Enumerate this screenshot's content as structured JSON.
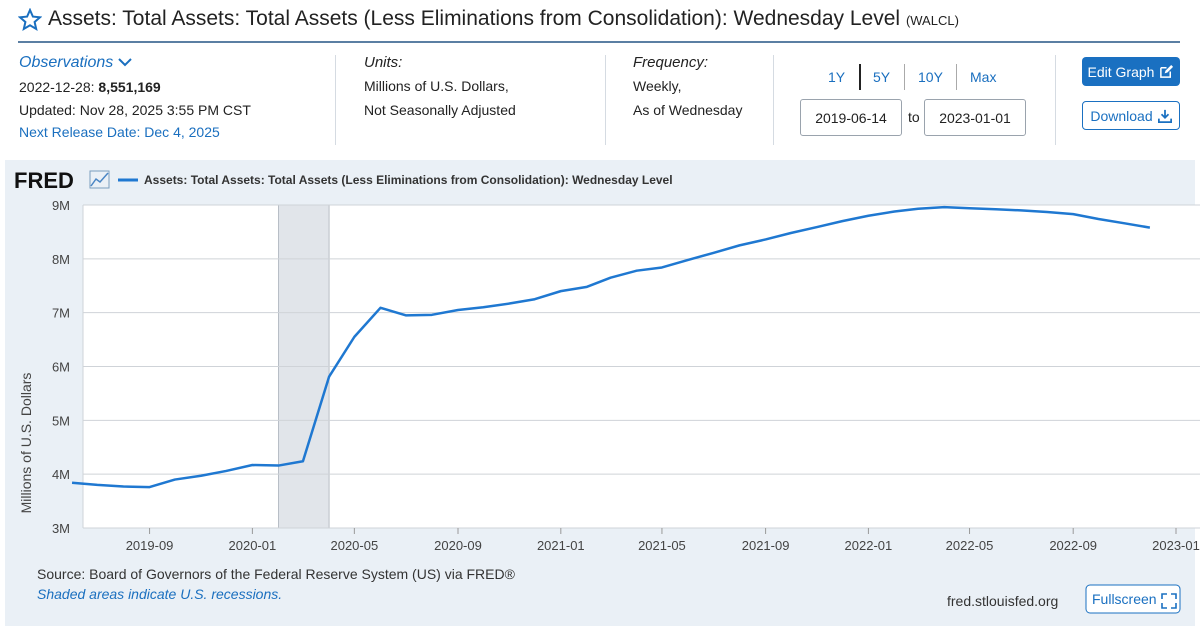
{
  "header": {
    "title": "Assets: Total Assets: Total Assets (Less Eliminations from Consolidation): Wednesday Level",
    "series_id": "(WALCL)"
  },
  "observations": {
    "label": "Observations",
    "date": "2022-12-28:",
    "value": "8,551,169",
    "updated": "Updated: Nov 28, 2025 3:55 PM CST",
    "next_release": "Next Release Date: Dec 4, 2025"
  },
  "units": {
    "label": "Units:",
    "lines": [
      "Millions of U.S. Dollars,",
      "Not Seasonally Adjusted"
    ]
  },
  "frequency": {
    "label": "Frequency:",
    "lines": [
      "Weekly,",
      "As of Wednesday"
    ]
  },
  "range_buttons": [
    "1Y",
    "5Y",
    "10Y",
    "Max"
  ],
  "date_separator": "to",
  "buttons": {
    "edit": "Edit Graph",
    "download": "Download",
    "fullscreen": "Fullscreen"
  },
  "chart_data": {
    "type": "line",
    "logo": "FRED",
    "ylabel": "Millions of U.S. Dollars",
    "x": [
      "2019-06",
      "2019-07",
      "2019-08",
      "2019-09",
      "2019-10",
      "2019-11",
      "2019-12",
      "2020-01",
      "2020-02",
      "2020-03",
      "2020-04",
      "2020-05",
      "2020-06",
      "2020-07",
      "2020-08",
      "2020-09",
      "2020-10",
      "2020-11",
      "2020-12",
      "2021-01",
      "2021-02",
      "2021-03",
      "2021-04",
      "2021-05",
      "2021-06",
      "2021-07",
      "2021-08",
      "2021-09",
      "2021-10",
      "2021-11",
      "2021-12",
      "2022-01",
      "2022-02",
      "2022-03",
      "2022-04",
      "2022-05",
      "2022-06",
      "2022-07",
      "2022-08",
      "2022-09",
      "2022-10",
      "2022-11",
      "2022-12"
    ],
    "series": [
      {
        "name": "Assets: Total Assets: Total Assets (Less Eliminations from Consolidation): Wednesday Level",
        "color": "#1f78d1",
        "values": [
          3840000,
          3800000,
          3770000,
          3760000,
          3900000,
          3970000,
          4060000,
          4170000,
          4160000,
          4240000,
          5810000,
          6550000,
          7090000,
          6950000,
          6960000,
          7050000,
          7100000,
          7170000,
          7250000,
          7400000,
          7480000,
          7650000,
          7780000,
          7840000,
          7980000,
          8110000,
          8250000,
          8360000,
          8480000,
          8590000,
          8700000,
          8800000,
          8880000,
          8930000,
          8960000,
          8940000,
          8920000,
          8900000,
          8870000,
          8830000,
          8740000,
          8660000,
          8580000
        ]
      }
    ],
    "xlim": [
      "2019-06-14",
      "2023-01-01"
    ],
    "xticks": [
      "2019-09",
      "2020-01",
      "2020-05",
      "2020-09",
      "2021-01",
      "2021-05",
      "2021-09",
      "2022-01",
      "2022-05",
      "2022-09",
      "2023-01"
    ],
    "ylim": [
      3000000,
      9000000
    ],
    "yticks": [
      {
        "value": 3000000,
        "label": "3M"
      },
      {
        "value": 4000000,
        "label": "4M"
      },
      {
        "value": 5000000,
        "label": "5M"
      },
      {
        "value": 6000000,
        "label": "6M"
      },
      {
        "value": 7000000,
        "label": "7M"
      },
      {
        "value": 8000000,
        "label": "8M"
      },
      {
        "value": 9000000,
        "label": "9M"
      }
    ],
    "grid": true,
    "recession": {
      "start": "2020-02",
      "end": "2020-04",
      "color": "#e1e5ea"
    }
  },
  "footer": {
    "source": "Source: Board of Governors of the Federal Reserve System (US) via FRED®",
    "note": "Shaded areas indicate U.S. recessions.",
    "site": "fred.stlouisfed.org"
  }
}
